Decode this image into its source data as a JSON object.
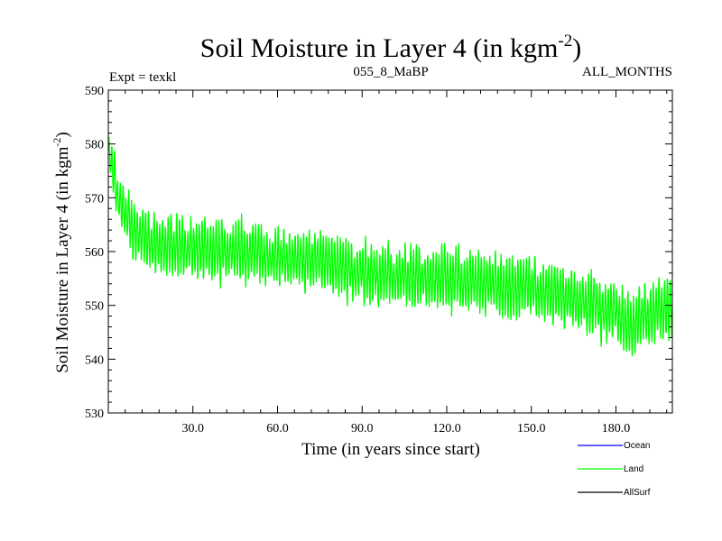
{
  "chart_data": {
    "type": "line",
    "title_main": "Soil Moisture in Layer 4 (in kgm",
    "title_sup": "-2",
    "title_close": ")",
    "subtitle_left": "Expt = texkl",
    "subtitle_center": "055_8_MaBP",
    "subtitle_right": "ALL_MONTHS",
    "xlabel": "Time (in years since start)",
    "ylabel_main": "Soil Moisture in Layer 4 (in kgm",
    "ylabel_sup": "-2",
    "ylabel_close": ")",
    "xlim": [
      0,
      200
    ],
    "ylim": [
      530,
      590
    ],
    "x_ticks": [
      30,
      60,
      90,
      120,
      150,
      180
    ],
    "x_tick_labels": [
      "30.0",
      "60.0",
      "90.0",
      "120.0",
      "150.0",
      "180.0"
    ],
    "y_ticks": [
      530,
      540,
      550,
      560,
      570,
      580,
      590
    ],
    "y_tick_labels": [
      "530",
      "540",
      "550",
      "560",
      "570",
      "580",
      "590"
    ],
    "legend": [
      {
        "name": "Ocean",
        "color": "#0000ff"
      },
      {
        "name": "Land",
        "color": "#00ff00"
      },
      {
        "name": "AllSurf",
        "color": "#000000"
      }
    ],
    "series": [
      {
        "name": "Land",
        "color": "#00ff00",
        "samples_per_year": 12,
        "trend_years": [
          0,
          1,
          3,
          6,
          10,
          20,
          30,
          45,
          60,
          75,
          90,
          105,
          120,
          135,
          150,
          160,
          170,
          180,
          185,
          190,
          200
        ],
        "trend_values": [
          578,
          576,
          571,
          567,
          563,
          561,
          561,
          560,
          559,
          558,
          556,
          555,
          555,
          554,
          553,
          552,
          550,
          549,
          546,
          548,
          550
        ],
        "amplitude_years": [
          0,
          5,
          10,
          200
        ],
        "amplitude_values": [
          4,
          4,
          4.5,
          4.5
        ]
      }
    ]
  }
}
